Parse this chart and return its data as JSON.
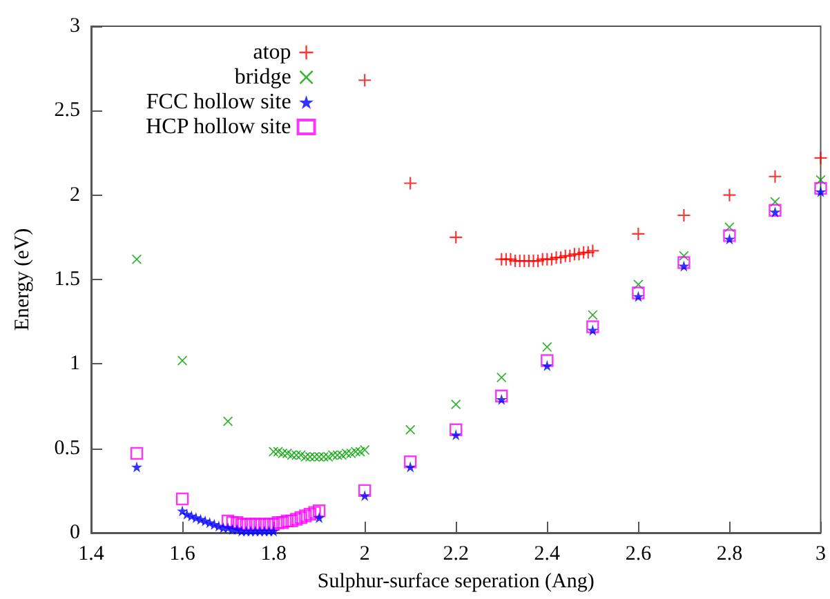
{
  "chart_data": {
    "type": "scatter",
    "xlabel": "Sulphur-surface seperation (Ang)",
    "ylabel": "Energy (eV)",
    "xlim": [
      1.4,
      3
    ],
    "xticks": [
      1.4,
      1.6,
      1.8,
      2,
      2.2,
      2.4,
      2.6,
      2.8,
      3
    ],
    "ylim": [
      0,
      3
    ],
    "yticks": [
      0,
      0.5,
      1,
      1.5,
      2,
      2.5,
      3
    ],
    "grid": false,
    "legend": "top left",
    "series": [
      {
        "name": "atop",
        "color": "#ff0000",
        "marker": "plus",
        "x": [
          2.0,
          2.1,
          2.2,
          2.3,
          2.31,
          2.32,
          2.33,
          2.34,
          2.35,
          2.36,
          2.37,
          2.38,
          2.39,
          2.4,
          2.41,
          2.42,
          2.43,
          2.44,
          2.45,
          2.46,
          2.47,
          2.48,
          2.49,
          2.5,
          2.6,
          2.7,
          2.8,
          2.9,
          3.0
        ],
        "values": [
          2.68,
          2.07,
          1.75,
          1.62,
          1.62,
          1.62,
          1.61,
          1.61,
          1.61,
          1.61,
          1.61,
          1.61,
          1.62,
          1.62,
          1.62,
          1.63,
          1.63,
          1.64,
          1.64,
          1.65,
          1.65,
          1.66,
          1.66,
          1.67,
          1.77,
          1.88,
          2.0,
          2.11,
          2.22
        ]
      },
      {
        "name": "bridge",
        "color": "#00a000",
        "marker": "cross",
        "x": [
          1.5,
          1.6,
          1.7,
          1.8,
          1.81,
          1.82,
          1.83,
          1.84,
          1.85,
          1.86,
          1.87,
          1.88,
          1.89,
          1.9,
          1.91,
          1.92,
          1.93,
          1.94,
          1.95,
          1.96,
          1.97,
          1.98,
          1.99,
          2.0,
          2.1,
          2.2,
          2.3,
          2.4,
          2.5,
          2.6,
          2.7,
          2.8,
          2.9,
          3.0
        ],
        "values": [
          1.62,
          1.02,
          0.66,
          0.48,
          0.48,
          0.47,
          0.47,
          0.46,
          0.46,
          0.46,
          0.45,
          0.45,
          0.45,
          0.45,
          0.45,
          0.45,
          0.46,
          0.46,
          0.46,
          0.47,
          0.47,
          0.48,
          0.48,
          0.49,
          0.61,
          0.76,
          0.92,
          1.1,
          1.29,
          1.47,
          1.64,
          1.81,
          1.96,
          2.09
        ]
      },
      {
        "name": "FCC hollow site",
        "color": "#0000ff",
        "marker": "star",
        "x": [
          1.5,
          1.6,
          1.61,
          1.62,
          1.63,
          1.64,
          1.65,
          1.66,
          1.67,
          1.68,
          1.69,
          1.7,
          1.71,
          1.72,
          1.73,
          1.74,
          1.75,
          1.76,
          1.77,
          1.78,
          1.79,
          1.8,
          1.9,
          2.0,
          2.1,
          2.2,
          2.3,
          2.4,
          2.5,
          2.6,
          2.7,
          2.8,
          2.9,
          3.0
        ],
        "values": [
          0.39,
          0.13,
          0.11,
          0.1,
          0.09,
          0.08,
          0.07,
          0.06,
          0.05,
          0.04,
          0.03,
          0.03,
          0.02,
          0.02,
          0.01,
          0.01,
          0.01,
          0.01,
          0.01,
          0.01,
          0.01,
          0.01,
          0.09,
          0.22,
          0.39,
          0.58,
          0.79,
          0.99,
          1.2,
          1.4,
          1.58,
          1.74,
          1.9,
          2.02
        ]
      },
      {
        "name": "HCP hollow site",
        "color": "#ff00ff",
        "marker": "square",
        "x": [
          1.5,
          1.6,
          1.7,
          1.71,
          1.72,
          1.73,
          1.74,
          1.75,
          1.76,
          1.77,
          1.78,
          1.79,
          1.8,
          1.81,
          1.82,
          1.83,
          1.84,
          1.85,
          1.86,
          1.87,
          1.88,
          1.89,
          1.9,
          2.0,
          2.1,
          2.2,
          2.3,
          2.4,
          2.5,
          2.6,
          2.7,
          2.8,
          2.9,
          3.0
        ],
        "values": [
          0.47,
          0.2,
          0.07,
          0.06,
          0.06,
          0.05,
          0.05,
          0.05,
          0.05,
          0.05,
          0.05,
          0.05,
          0.05,
          0.06,
          0.06,
          0.07,
          0.07,
          0.08,
          0.09,
          0.1,
          0.11,
          0.12,
          0.13,
          0.25,
          0.42,
          0.61,
          0.81,
          1.02,
          1.22,
          1.42,
          1.6,
          1.76,
          1.91,
          2.04
        ]
      }
    ]
  }
}
